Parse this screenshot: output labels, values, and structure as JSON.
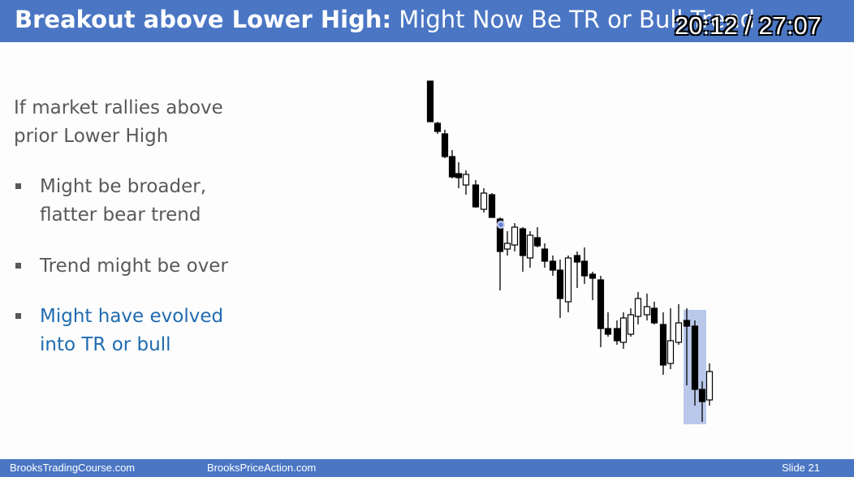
{
  "header": {
    "title_bold": "Breakout above Lower High:",
    "title_rest": "Might Now Be TR or Bull Trend"
  },
  "overlay": {
    "timestamp": "20:12 / 27:07"
  },
  "body": {
    "intro": [
      "If market rallies above",
      "prior Lower High"
    ],
    "bullets": [
      {
        "lines": [
          "Might be broader,",
          "flatter bear trend"
        ]
      },
      {
        "lines": [
          "Trend might be over"
        ]
      },
      {
        "lines": [
          "Might have evolved",
          "into TR or bull"
        ]
      }
    ]
  },
  "footer": {
    "left": "BrooksTradingCourse.com",
    "center": "BrooksPriceAction.com",
    "slide": "Slide  21"
  }
}
